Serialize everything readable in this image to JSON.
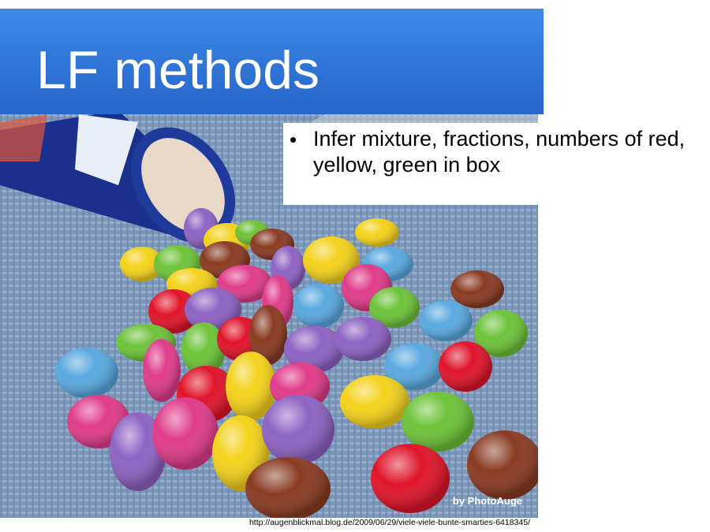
{
  "slide": {
    "title": "LF methods",
    "bullets": [
      {
        "text": "Infer mixture, fractions, numbers of red, yellow, green in box"
      }
    ]
  },
  "photo": {
    "credit": "by PhotoAuge",
    "source_url": "http://augenblickmal.blog.de/2009/06/29/viele-viele-bunte-smarties-6418345/",
    "candy_colors": {
      "red": "#e0142a",
      "yellow": "#f4d21c",
      "green": "#6ec33a",
      "blue": "#5aa9e0",
      "purple": "#8f63c4",
      "pink": "#e03c8a",
      "brown": "#8a3b22"
    }
  },
  "theme": {
    "title_bar_color": "#2f74d6",
    "title_text_color": "#ffffff"
  }
}
